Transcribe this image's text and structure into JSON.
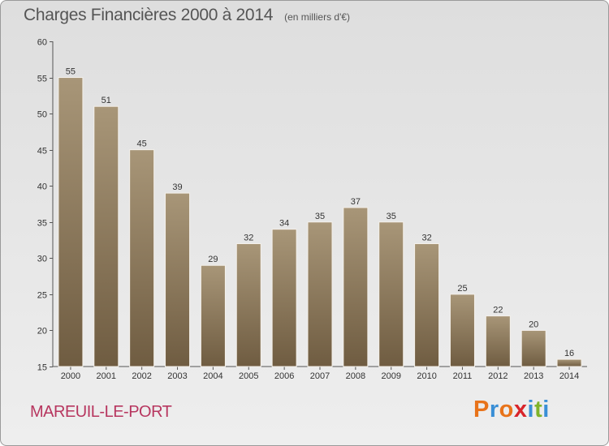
{
  "header": {
    "title": "Charges Financières 2000 à 2014",
    "subtitle": "(en milliers d'€)"
  },
  "footer": {
    "city": "MAREUIL-LE-PORT",
    "brand": "Proxiti",
    "brand_colors": [
      "#e8731a",
      "#3a8fd6",
      "#e8731a",
      "#d8242a",
      "#3a8fd6",
      "#7fb32a",
      "#3a8fd6"
    ]
  },
  "chart_data": {
    "type": "bar",
    "categories": [
      "2000",
      "2001",
      "2002",
      "2003",
      "2004",
      "2005",
      "2006",
      "2007",
      "2008",
      "2009",
      "2010",
      "2011",
      "2012",
      "2013",
      "2014"
    ],
    "values": [
      55,
      51,
      45,
      39,
      29,
      32,
      34,
      35,
      37,
      35,
      32,
      25,
      22,
      20,
      16
    ],
    "title": "Charges Financières 2000 à 2014",
    "subtitle": "(en milliers d'€)",
    "ylim": [
      15,
      60
    ],
    "yticks": [
      15,
      20,
      25,
      30,
      35,
      40,
      45,
      50,
      55,
      60
    ],
    "grid": false,
    "bar_color_top": "#a89678",
    "bar_color_bottom": "#6f5c41"
  }
}
